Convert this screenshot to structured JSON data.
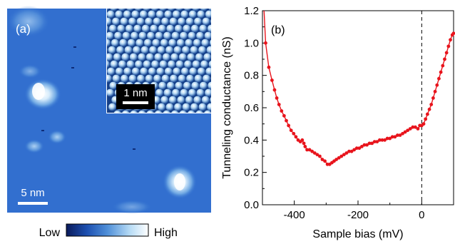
{
  "panel_a": {
    "label": "(a)",
    "scale_bar_label": "5 nm",
    "inset_scale_bar_label": "1 nm",
    "colorbar": {
      "low_label": "Low",
      "high_label": "High",
      "colors": [
        "#0a1a5a",
        "#1c4fb0",
        "#4f8fd8",
        "#b8dcf5",
        "#ffffff"
      ]
    }
  },
  "panel_b": {
    "label": "(b)",
    "color": "#e8141c"
  },
  "chart_data": {
    "type": "line",
    "title": "",
    "xlabel": "Sample bias (mV)",
    "ylabel": "Tunneling conductance (nS)",
    "xlim": [
      -500,
      100
    ],
    "ylim": [
      0.0,
      1.2
    ],
    "xticks": [
      -400,
      -200,
      0
    ],
    "xtick_labels": [
      "-400",
      "-200",
      "0"
    ],
    "yticks": [
      0.0,
      0.2,
      0.4,
      0.6,
      0.8,
      1.0,
      1.2
    ],
    "ytick_labels": [
      "0.0",
      "0.2",
      "0.4",
      "0.6",
      "0.8",
      "1.0",
      "1.2"
    ],
    "reference_line_x": 0,
    "series": [
      {
        "x": [
          -490,
          -480,
          -470,
          -462,
          -455,
          -448,
          -440,
          -432,
          -425,
          -418,
          -410,
          -402,
          -395,
          -388,
          -381,
          -375,
          -370,
          -366,
          -360,
          -352,
          -344,
          -336,
          -328,
          -320,
          -312,
          -304,
          -296,
          -289,
          -282,
          -275,
          -268,
          -260,
          -252,
          -244,
          -236,
          -228,
          -220,
          -212,
          -204,
          -196,
          -188,
          -180,
          -172,
          -164,
          -156,
          -148,
          -140,
          -132,
          -124,
          -116,
          -108,
          -100,
          -92,
          -84,
          -76,
          -68,
          -60,
          -52,
          -44,
          -36,
          -28,
          -20,
          -12,
          -6,
          0,
          6,
          12,
          18,
          24,
          30,
          36,
          42,
          48,
          54,
          60,
          66,
          72,
          78,
          84,
          90,
          96,
          100
        ],
        "y": [
          1.0,
          0.85,
          0.77,
          0.71,
          0.66,
          0.62,
          0.58,
          0.55,
          0.52,
          0.49,
          0.46,
          0.44,
          0.42,
          0.4,
          0.39,
          0.4,
          0.38,
          0.36,
          0.34,
          0.34,
          0.33,
          0.32,
          0.31,
          0.3,
          0.28,
          0.27,
          0.25,
          0.25,
          0.26,
          0.27,
          0.28,
          0.29,
          0.3,
          0.31,
          0.32,
          0.33,
          0.33,
          0.34,
          0.35,
          0.35,
          0.36,
          0.37,
          0.37,
          0.38,
          0.38,
          0.39,
          0.39,
          0.4,
          0.4,
          0.4,
          0.41,
          0.41,
          0.42,
          0.42,
          0.43,
          0.43,
          0.44,
          0.45,
          0.46,
          0.47,
          0.48,
          0.48,
          0.47,
          0.49,
          0.49,
          0.5,
          0.53,
          0.56,
          0.59,
          0.62,
          0.66,
          0.7,
          0.74,
          0.78,
          0.82,
          0.86,
          0.9,
          0.94,
          0.98,
          1.02,
          1.05,
          1.06
        ]
      }
    ]
  }
}
